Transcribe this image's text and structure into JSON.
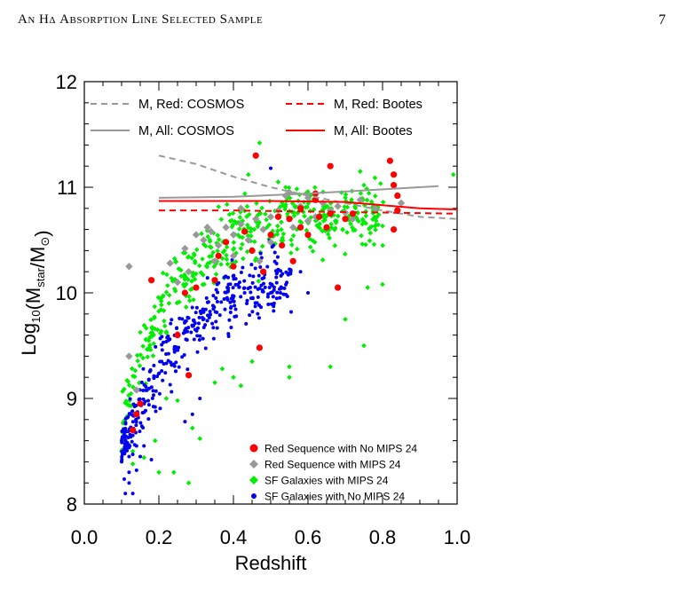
{
  "header": {
    "running_head": "An Hδ Absorption Line Selected Sample",
    "page_number": "7"
  },
  "colors": {
    "red": "#ff0000",
    "grey": "#999999",
    "green": "#00ee00",
    "blue": "#0000ee"
  },
  "chart_data": {
    "type": "scatter",
    "xlabel": "Redshift",
    "ylabel": "Log10(Mstar/M⊙)",
    "xlim": [
      0.0,
      1.0
    ],
    "ylim": [
      8.0,
      12.0
    ],
    "x_ticks": [
      "0.0",
      "0.2",
      "0.4",
      "0.6",
      "0.8",
      "1.0"
    ],
    "y_ticks": [
      "8",
      "9",
      "10",
      "11",
      "12"
    ],
    "grid": false,
    "legend_top": [
      {
        "name": "M, Red: COSMOS",
        "style": "dashed",
        "color": "#999999"
      },
      {
        "name": "M, Red: Bootes",
        "style": "dashed",
        "color": "#ff0000"
      },
      {
        "name": "M, All: COSMOS",
        "style": "solid",
        "color": "#999999"
      },
      {
        "name": "M, All: Bootes",
        "style": "solid",
        "color": "#ff0000"
      }
    ],
    "lines": [
      {
        "name": "M, Red: COSMOS",
        "x": [
          0.2,
          0.3,
          0.4,
          0.5,
          0.6,
          0.7,
          0.8,
          0.9,
          1.0
        ],
        "y": [
          11.3,
          11.22,
          11.1,
          11.0,
          10.92,
          10.85,
          10.78,
          10.72,
          10.7
        ]
      },
      {
        "name": "M, Red: Bootes",
        "x": [
          0.2,
          0.4,
          0.6,
          0.8,
          1.0
        ],
        "y": [
          10.78,
          10.78,
          10.77,
          10.76,
          10.75
        ]
      },
      {
        "name": "M, All: COSMOS",
        "x": [
          0.2,
          0.4,
          0.6,
          0.8,
          0.95
        ],
        "y": [
          10.9,
          10.91,
          10.94,
          10.98,
          11.01
        ]
      },
      {
        "name": "M, All: Bootes",
        "x": [
          0.2,
          0.5,
          0.7,
          0.8,
          0.9,
          1.0
        ],
        "y": [
          10.87,
          10.87,
          10.86,
          10.83,
          10.8,
          10.79
        ]
      }
    ],
    "legend_points": [
      {
        "name": "Red Sequence with No MIPS 24",
        "marker": "circle",
        "color": "#ff0000"
      },
      {
        "name": "Red Sequence with MIPS 24",
        "marker": "diamond",
        "color": "#999999"
      },
      {
        "name": "SF Galaxies with MIPS 24",
        "marker": "diamond",
        "color": "#00ee00"
      },
      {
        "name": "SF Galaxies with No MIPS 24",
        "marker": "circle",
        "color": "#0000ee"
      }
    ],
    "series": [
      {
        "name": "Red Sequence with No MIPS 24",
        "marker": "circle",
        "points": [
          [
            0.46,
            11.3
          ],
          [
            0.66,
            11.2
          ],
          [
            0.82,
            11.25
          ],
          [
            0.83,
            11.12
          ],
          [
            0.83,
            11.02
          ],
          [
            0.84,
            10.92
          ],
          [
            0.84,
            10.78
          ],
          [
            0.83,
            10.6
          ],
          [
            0.62,
            10.94
          ],
          [
            0.58,
            10.8
          ],
          [
            0.55,
            10.7
          ],
          [
            0.5,
            10.55
          ],
          [
            0.45,
            10.4
          ],
          [
            0.4,
            10.25
          ],
          [
            0.35,
            10.12
          ],
          [
            0.3,
            10.05
          ],
          [
            0.27,
            10.0
          ],
          [
            0.25,
            9.6
          ],
          [
            0.28,
            9.22
          ],
          [
            0.47,
            9.48
          ],
          [
            0.68,
            10.05
          ],
          [
            0.6,
            10.55
          ],
          [
            0.53,
            10.45
          ],
          [
            0.65,
            10.62
          ],
          [
            0.7,
            10.7
          ],
          [
            0.72,
            10.75
          ],
          [
            0.43,
            10.58
          ],
          [
            0.38,
            10.48
          ],
          [
            0.58,
            10.62
          ],
          [
            0.62,
            10.88
          ],
          [
            0.18,
            10.12
          ],
          [
            0.15,
            8.95
          ],
          [
            0.14,
            8.85
          ],
          [
            0.13,
            8.7
          ],
          [
            0.36,
            10.35
          ],
          [
            0.48,
            10.2
          ],
          [
            0.56,
            10.3
          ],
          [
            0.66,
            10.75
          ],
          [
            0.52,
            10.72
          ],
          [
            0.63,
            10.72
          ]
        ]
      },
      {
        "name": "Red Sequence with MIPS 24",
        "marker": "diamond",
        "points": [
          [
            0.12,
            10.25
          ],
          [
            0.23,
            10.28
          ],
          [
            0.27,
            10.42
          ],
          [
            0.3,
            10.55
          ],
          [
            0.32,
            10.5
          ],
          [
            0.34,
            10.58
          ],
          [
            0.36,
            10.45
          ],
          [
            0.38,
            10.62
          ],
          [
            0.4,
            10.55
          ],
          [
            0.42,
            10.65
          ],
          [
            0.44,
            10.5
          ],
          [
            0.46,
            10.7
          ],
          [
            0.48,
            10.6
          ],
          [
            0.5,
            10.72
          ],
          [
            0.52,
            10.78
          ],
          [
            0.54,
            10.92
          ],
          [
            0.56,
            10.62
          ],
          [
            0.58,
            10.82
          ],
          [
            0.6,
            10.9
          ],
          [
            0.62,
            10.72
          ],
          [
            0.64,
            10.85
          ],
          [
            0.66,
            10.78
          ],
          [
            0.68,
            10.82
          ],
          [
            0.7,
            10.76
          ],
          [
            0.72,
            10.7
          ],
          [
            0.74,
            10.88
          ],
          [
            0.78,
            10.8
          ],
          [
            0.45,
            10.4
          ],
          [
            0.35,
            10.3
          ],
          [
            0.12,
            9.4
          ],
          [
            0.14,
            9.08
          ],
          [
            0.25,
            10.1
          ],
          [
            0.28,
            10.2
          ],
          [
            0.4,
            10.35
          ],
          [
            0.5,
            10.48
          ],
          [
            0.6,
            10.68
          ],
          [
            0.55,
            10.95
          ],
          [
            0.42,
            10.8
          ],
          [
            0.47,
            10.3
          ],
          [
            0.33,
            10.62
          ],
          [
            0.85,
            10.85
          ]
        ]
      },
      {
        "name": "SF Galaxies with MIPS 24",
        "marker": "diamond",
        "generator": {
          "n": 460,
          "x_range": [
            0.1,
            1.0
          ],
          "curve": "y = 8.75 + 2.0*(1 - exp(-(x-0.1)/0.14))",
          "scatter": 0.38,
          "ymax": 11.45,
          "ymin": 8.0
        },
        "points": [
          [
            0.47,
            11.42
          ],
          [
            0.46,
            11.3
          ],
          [
            0.44,
            11.12
          ],
          [
            0.74,
            11.15
          ],
          [
            0.52,
            11.05
          ],
          [
            0.75,
            11.02
          ],
          [
            0.99,
            11.12
          ],
          [
            0.54,
            11.0
          ],
          [
            0.35,
            9.15
          ],
          [
            0.37,
            9.28
          ],
          [
            0.4,
            9.2
          ],
          [
            0.42,
            9.12
          ],
          [
            0.45,
            9.35
          ],
          [
            0.55,
            9.3
          ],
          [
            0.55,
            9.2
          ],
          [
            0.66,
            9.3
          ],
          [
            0.7,
            9.75
          ],
          [
            0.75,
            9.5
          ],
          [
            0.76,
            10.05
          ],
          [
            0.8,
            10.08
          ],
          [
            0.22,
            9.0
          ],
          [
            0.25,
            8.98
          ],
          [
            0.29,
            8.72
          ],
          [
            0.31,
            8.62
          ],
          [
            0.19,
            8.6
          ],
          [
            0.13,
            8.5
          ],
          [
            0.16,
            8.44
          ],
          [
            0.1,
            8.5
          ],
          [
            0.13,
            8.38
          ],
          [
            0.24,
            8.3
          ],
          [
            0.2,
            8.3
          ],
          [
            0.28,
            8.2
          ]
        ]
      },
      {
        "name": "SF Galaxies with No MIPS 24",
        "marker": "circle",
        "generator": {
          "n": 380,
          "x_range": [
            0.1,
            0.75
          ],
          "curve": "y = 8.5 + 1.8*(1 - exp(-(x-0.1)/0.18))",
          "scatter": 0.35,
          "ymax": 11.2,
          "ymin": 8.0
        },
        "points": [
          [
            0.5,
            11.18
          ],
          [
            0.11,
            8.6
          ],
          [
            0.12,
            8.3
          ],
          [
            0.13,
            8.1
          ],
          [
            0.14,
            8.32
          ],
          [
            0.1,
            8.4
          ],
          [
            0.17,
            8.0
          ],
          [
            0.12,
            8.2
          ],
          [
            0.11,
            8.1
          ],
          [
            0.15,
            8.45
          ],
          [
            0.16,
            8.55
          ],
          [
            0.18,
            8.42
          ],
          [
            0.31,
            9.0
          ],
          [
            0.29,
            8.85
          ],
          [
            0.27,
            8.78
          ],
          [
            0.13,
            8.65
          ],
          [
            0.43,
            10.0
          ],
          [
            0.5,
            10.0
          ],
          [
            0.6,
            10.0
          ],
          [
            0.58,
            10.2
          ],
          [
            0.12,
            8.45
          ],
          [
            0.14,
            8.55
          ]
        ]
      }
    ]
  }
}
